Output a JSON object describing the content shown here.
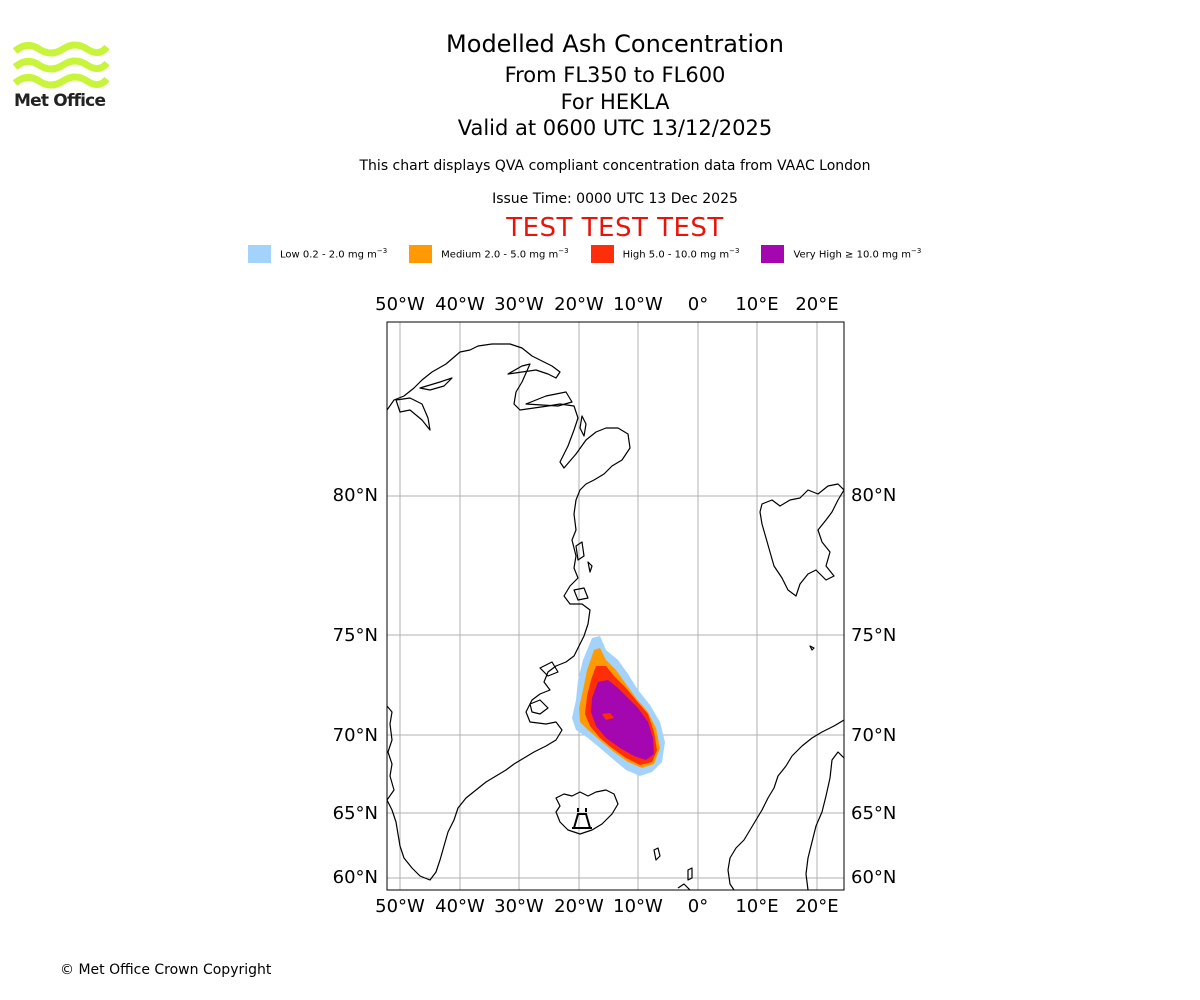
{
  "brand": {
    "name": "Met Office",
    "logo_icon": "met-office-wave-logo-icon",
    "logo_color": "#c8f53c"
  },
  "titles": {
    "main": "Modelled Ash Concentration",
    "levels": "From FL350 to FL600",
    "volcano": "For HEKLA",
    "valid": "Valid at 0600 UTC 13/12/2025",
    "notice": "This chart displays QVA compliant concentration data from VAAC London",
    "issue": "Issue Time: 0000 UTC 13 Dec 2025",
    "test_banner": "TEST TEST TEST",
    "test_color": "#e8140c"
  },
  "legend": [
    {
      "label": "Low 0.2 - 2.0 mg m",
      "unit_exp": "−3",
      "color": "#a3d3fa"
    },
    {
      "label": "Medium 2.0 - 5.0 mg m",
      "unit_exp": "−3",
      "color": "#ff9a05"
    },
    {
      "label": "High 5.0 - 10.0 mg m",
      "unit_exp": "−3",
      "color": "#ff2e0a"
    },
    {
      "label": "Very High  ≥  10.0 mg m",
      "unit_exp": "−3",
      "color": "#a406b0"
    }
  ],
  "map": {
    "lon_ticks": [
      "50°W",
      "40°W",
      "30°W",
      "20°W",
      "10°W",
      "0°",
      "10°E",
      "20°E"
    ],
    "lat_ticks": [
      "80°N",
      "75°N",
      "70°N",
      "65°N",
      "60°N"
    ],
    "gridlines": true,
    "coastline_color": "#000000",
    "gridline_color": "#b0b0b0",
    "volcano_marker_icon": "volcano-marker-icon"
  },
  "footer": {
    "copyright": "© Met Office Crown Copyright"
  }
}
